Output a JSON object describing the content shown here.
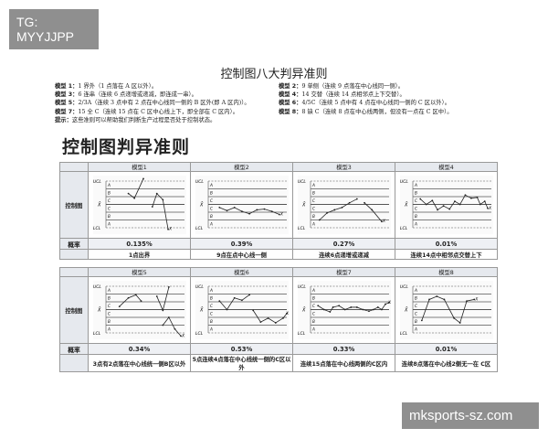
{
  "badges": {
    "top_left": "TG: MYYJJPP",
    "bottom_right": "mksports-sz.com"
  },
  "title": "控制图八大判异准则",
  "rules": [
    {
      "label": "模型 1：",
      "text": "1 界外（1 点落在 A 区以外）。"
    },
    {
      "label": "模型 2：",
      "text": "9 单侧（连续 9 点落在中心线同一侧）。"
    },
    {
      "label": "模型 3：",
      "text": "6 连串（连续 6 点递增或递减，即连成一串）。"
    },
    {
      "label": "模型 4：",
      "text": "14 交替（连续 14 点相邻点上下交替）。"
    },
    {
      "label": "模型 5：",
      "text": "2/3A（连续 3 点中有 2 点在中心线同一侧的 B 区外(即 A 区内)）。"
    },
    {
      "label": "模型 6：",
      "text": "4/5C（连续 5 点中有 4 点在中心线同一侧的 C 区以外）。"
    },
    {
      "label": "模型 7：",
      "text": "15 全 C（连续 15 点在 C 区中心线上下，即全部在 C 区内）。"
    },
    {
      "label": "模型 8：",
      "text": "8 缺 C（连续 8 点在中心线两侧，但没有一点在 C 区中）。"
    }
  ],
  "hint": {
    "label": "提示：",
    "text": "这些准则可以帮助我们判断生产过程是否处于控制状态。"
  },
  "big_title": "控制图判异准则",
  "row_labels": {
    "chart": "控制图",
    "rate": "概率"
  },
  "axis": {
    "ucl": "UCL",
    "lcl": "LCL",
    "cl": "X̄",
    "zones": [
      "A",
      "B",
      "C",
      "C",
      "B",
      "A"
    ],
    "mark": "X"
  },
  "tables": [
    {
      "models": [
        {
          "name": "模型1",
          "rate": "0.135%",
          "desc": "1点出界"
        },
        {
          "name": "模型2",
          "rate": "0.39%",
          "desc": "9点在点中心线一侧"
        },
        {
          "name": "模型3",
          "rate": "0.27%",
          "desc": "连续6点递增或递减"
        },
        {
          "name": "模型4",
          "rate": "0.01%",
          "desc": "连续14点中相邻点交替上下"
        }
      ]
    },
    {
      "models": [
        {
          "name": "模型5",
          "rate": "0.34%",
          "desc": "3点有2点落在中心线统一侧B区以外"
        },
        {
          "name": "模型6",
          "rate": "0.53%",
          "desc": "5点连续4点落在中心线统一侧的C区以外"
        },
        {
          "name": "模型7",
          "rate": "0.33%",
          "desc": "连续15点落在中心线两侧的C区内"
        },
        {
          "name": "模型8",
          "rate": "0.01%",
          "desc": "连续8点落在中心线2侧无一在 C区"
        }
      ]
    }
  ]
}
